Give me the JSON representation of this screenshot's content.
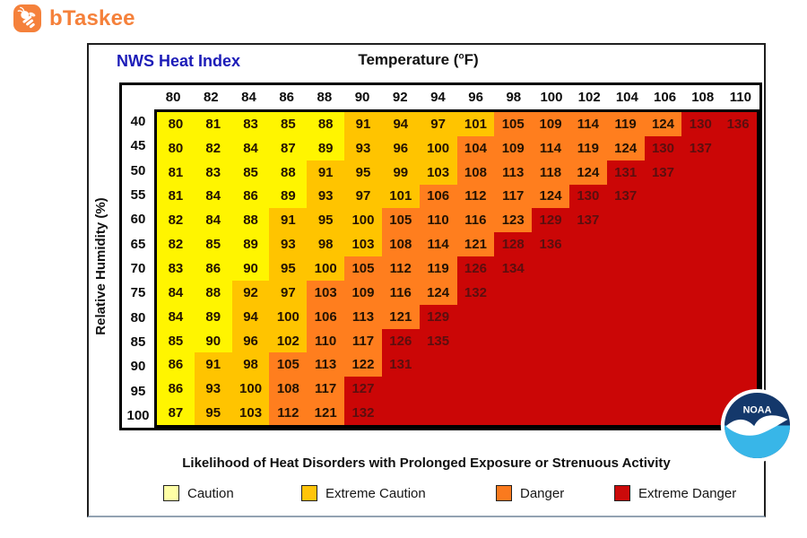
{
  "brand": {
    "name": "bTaskee",
    "color": "#F5813B",
    "icon": "bee-icon"
  },
  "chart": {
    "title": "NWS Heat Index",
    "title_color": "#1c1cb8",
    "x_axis_title": {
      "pre": "Temperature (",
      "deg": "o",
      "post": "F)"
    },
    "y_axis_title": "Relative Humidity (%)",
    "footnote": "Likelihood of Heat Disorders with Prolonged Exposure or Strenuous Activity"
  },
  "legend": {
    "items": [
      {
        "label": "Caution",
        "color": "#FFFFA6"
      },
      {
        "label": "Extreme Caution",
        "color": "#FFC40A"
      },
      {
        "label": "Danger",
        "color": "#FA7A1E"
      },
      {
        "label": "Extreme Danger",
        "color": "#CB0A0A"
      }
    ]
  },
  "noaa": {
    "label": "NOAA"
  },
  "chart_data": {
    "type": "heatmap",
    "title": "NWS Heat Index",
    "xlabel": "Temperature (°F)",
    "ylabel": "Relative Humidity (%)",
    "legend_position": "bottom",
    "columns": [
      80,
      82,
      84,
      86,
      88,
      90,
      92,
      94,
      96,
      98,
      100,
      102,
      104,
      106,
      108,
      110
    ],
    "row_header_values": [
      40,
      45,
      50,
      55,
      60,
      65,
      70,
      75,
      80,
      85,
      90,
      95,
      100
    ],
    "category_codes": {
      "Y": "caution",
      "G": "extreme_caution",
      "O": "danger",
      "R": "extreme_danger"
    },
    "category_colors": {
      "caution": "#FFF500",
      "extreme_caution": "#FFC400",
      "danger": "#FF7E1E",
      "extreme_danger": "#CB0606"
    },
    "rows": [
      {
        "rh": 40,
        "values": [
          80,
          81,
          83,
          85,
          88,
          91,
          94,
          97,
          101,
          105,
          109,
          114,
          119,
          124,
          130,
          136
        ],
        "categories": "YYYYYGGGGOOOOORR"
      },
      {
        "rh": 45,
        "values": [
          80,
          82,
          84,
          87,
          89,
          93,
          96,
          100,
          104,
          109,
          114,
          119,
          124,
          130,
          137
        ],
        "categories": "YYYYYGGGOOOOORRR"
      },
      {
        "rh": 50,
        "values": [
          81,
          83,
          85,
          88,
          91,
          95,
          99,
          103,
          108,
          113,
          118,
          124,
          131,
          137
        ],
        "categories": "YYYYGGGGOOOORRRR"
      },
      {
        "rh": 55,
        "values": [
          81,
          84,
          86,
          89,
          93,
          97,
          101,
          106,
          112,
          117,
          124,
          130,
          137
        ],
        "categories": "YYYYGGGOOOORRRRR"
      },
      {
        "rh": 60,
        "values": [
          82,
          84,
          88,
          91,
          95,
          100,
          105,
          110,
          116,
          123,
          129,
          137
        ],
        "categories": "YYYGGGOOOORRRRRR"
      },
      {
        "rh": 65,
        "values": [
          82,
          85,
          89,
          93,
          98,
          103,
          108,
          114,
          121,
          128,
          136
        ],
        "categories": "YYYGGGOOORRRRRRR"
      },
      {
        "rh": 70,
        "values": [
          83,
          86,
          90,
          95,
          100,
          105,
          112,
          119,
          126,
          134
        ],
        "categories": "YYYGGOOORRRRRRRR"
      },
      {
        "rh": 75,
        "values": [
          84,
          88,
          92,
          97,
          103,
          109,
          116,
          124,
          132
        ],
        "categories": "YYGGOOOORRRRRRRR"
      },
      {
        "rh": 80,
        "values": [
          84,
          89,
          94,
          100,
          106,
          113,
          121,
          129
        ],
        "categories": "YYGGOOORRRRRRRRR"
      },
      {
        "rh": 85,
        "values": [
          85,
          90,
          96,
          102,
          110,
          117,
          126,
          135
        ],
        "categories": "YYGGOORRRRRRRRRR"
      },
      {
        "rh": 90,
        "values": [
          86,
          91,
          98,
          105,
          113,
          122,
          131
        ],
        "categories": "YGGOOORRRRRRRRRR"
      },
      {
        "rh": 95,
        "values": [
          86,
          93,
          100,
          108,
          117,
          127
        ],
        "categories": "YGGOORRRRRRRRRRR"
      },
      {
        "rh": 100,
        "values": [
          87,
          95,
          103,
          112,
          121,
          132
        ],
        "categories": "YGGOORRRRRRRRRRR"
      }
    ]
  }
}
